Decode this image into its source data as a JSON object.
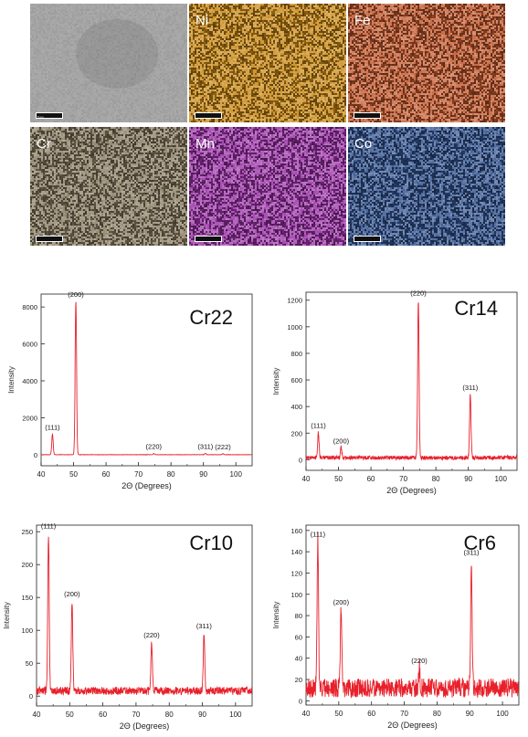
{
  "eds_maps": {
    "tiles": [
      {
        "label": "",
        "color": "#a4a4a4"
      },
      {
        "label": "Ni",
        "color": "#c98a1a"
      },
      {
        "label": "Fe",
        "color": "#c35c32"
      },
      {
        "label": "Cr",
        "color": "#8a7d63"
      },
      {
        "label": "Mn",
        "color": "#9b36a7"
      },
      {
        "label": "Co",
        "color": "#34548e"
      }
    ],
    "scale_label": "5 um"
  },
  "chart_data": [
    {
      "type": "line",
      "title": "Cr22",
      "xlabel": "2Θ (Degrees)",
      "ylabel": "Intensity",
      "xlim": [
        40,
        105
      ],
      "ylim": [
        -600,
        8700
      ],
      "xticks": [
        40,
        50,
        60,
        70,
        80,
        90,
        100
      ],
      "yticks": [
        0,
        2000,
        4000,
        6000,
        8000
      ],
      "baseline": 0,
      "noise": 8,
      "peaks": [
        {
          "hkl": "(111)",
          "x": 43.5,
          "y": 1100
        },
        {
          "hkl": "(200)",
          "x": 50.7,
          "y": 8300
        },
        {
          "hkl": "(220)",
          "x": 74.7,
          "y": 60
        },
        {
          "hkl": "(311)",
          "x": 90.6,
          "y": 70
        },
        {
          "hkl": "(222)",
          "x": 96.0,
          "y": 50
        }
      ],
      "color": "#e8202a"
    },
    {
      "type": "line",
      "title": "Cr14",
      "xlabel": "2Θ (Degrees)",
      "ylabel": "Intensity",
      "xlim": [
        40,
        105
      ],
      "ylim": [
        -80,
        1260
      ],
      "xticks": [
        40,
        50,
        60,
        70,
        80,
        90,
        100
      ],
      "yticks": [
        0,
        200,
        400,
        600,
        800,
        1000,
        1200
      ],
      "baseline": 15,
      "noise": 15,
      "peaks": [
        {
          "hkl": "(111)",
          "x": 43.8,
          "y": 205
        },
        {
          "hkl": "(200)",
          "x": 50.8,
          "y": 90
        },
        {
          "hkl": "(220)",
          "x": 74.6,
          "y": 1200
        },
        {
          "hkl": "(311)",
          "x": 90.6,
          "y": 490
        }
      ],
      "color": "#e8202a"
    },
    {
      "type": "line",
      "title": "Cr10",
      "xlabel": "2Θ (Degrees)",
      "ylabel": "Intensity",
      "xlim": [
        40,
        105
      ],
      "ylim": [
        -15,
        260
      ],
      "xticks": [
        40,
        50,
        60,
        70,
        80,
        90,
        100
      ],
      "yticks": [
        0,
        50,
        100,
        150,
        200,
        250
      ],
      "baseline": 8,
      "noise": 6,
      "peaks": [
        {
          "hkl": "(111)",
          "x": 43.6,
          "y": 248
        },
        {
          "hkl": "(200)",
          "x": 50.7,
          "y": 145
        },
        {
          "hkl": "(220)",
          "x": 74.7,
          "y": 82
        },
        {
          "hkl": "(311)",
          "x": 90.5,
          "y": 96
        }
      ],
      "color": "#e8202a"
    },
    {
      "type": "line",
      "title": "Cr6",
      "xlabel": "2Θ (Degrees)",
      "ylabel": "Intensity",
      "xlim": [
        40,
        105
      ],
      "ylim": [
        -4,
        165
      ],
      "xticks": [
        40,
        50,
        60,
        70,
        80,
        90,
        100
      ],
      "yticks": [
        0,
        20,
        40,
        60,
        80,
        100,
        120,
        140,
        160
      ],
      "baseline": 12,
      "noise": 9,
      "peaks": [
        {
          "hkl": "(111)",
          "x": 43.6,
          "y": 150
        },
        {
          "hkl": "(200)",
          "x": 50.7,
          "y": 86
        },
        {
          "hkl": "(220)",
          "x": 74.6,
          "y": 31
        },
        {
          "hkl": "(311)",
          "x": 90.5,
          "y": 133
        }
      ],
      "color": "#e8202a"
    }
  ]
}
